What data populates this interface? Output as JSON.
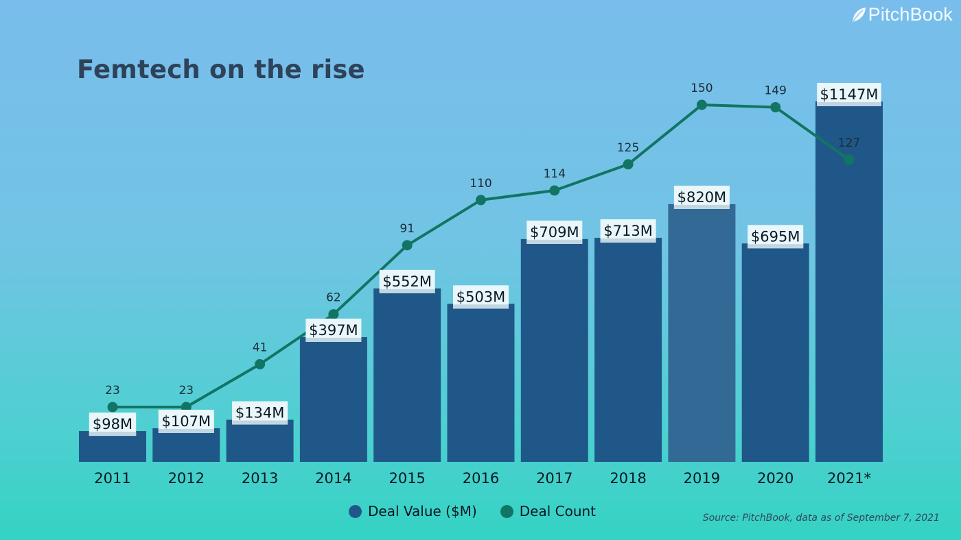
{
  "brand": {
    "name": "PitchBook",
    "logo_icon": "leaf-logo-icon"
  },
  "chart_data": {
    "type": "bar",
    "title": "Femtech on the rise",
    "categories": [
      "2011",
      "2012",
      "2013",
      "2014",
      "2015",
      "2016",
      "2017",
      "2018",
      "2019",
      "2020",
      "2021*"
    ],
    "series": [
      {
        "name": "Deal Value ($M)",
        "type": "bar",
        "color": "#1f5888",
        "values": [
          98,
          107,
          134,
          397,
          552,
          503,
          709,
          713,
          820,
          695,
          1147
        ],
        "value_labels": [
          "$98M",
          "$107M",
          "$134M",
          "$397M",
          "$552M",
          "$503M",
          "$709M",
          "$713M",
          "$820M",
          "$695M",
          "$1147M"
        ]
      },
      {
        "name": "Deal Count",
        "type": "line",
        "color": "#127564",
        "values": [
          23,
          23,
          41,
          62,
          91,
          110,
          114,
          125,
          150,
          149,
          127
        ]
      }
    ],
    "highlight_category": "2019",
    "xlabel": "",
    "ylabel": "",
    "ylim_value": [
      0,
      1147
    ],
    "ylim_count": [
      23,
      150
    ],
    "grid": false,
    "legend_position": "bottom-center"
  },
  "legend": [
    {
      "label": "Deal Value ($M)",
      "color": "#1f5888"
    },
    {
      "label": "Deal Count",
      "color": "#127564"
    }
  ],
  "source": "Source: PitchBook, data as of September 7, 2021"
}
